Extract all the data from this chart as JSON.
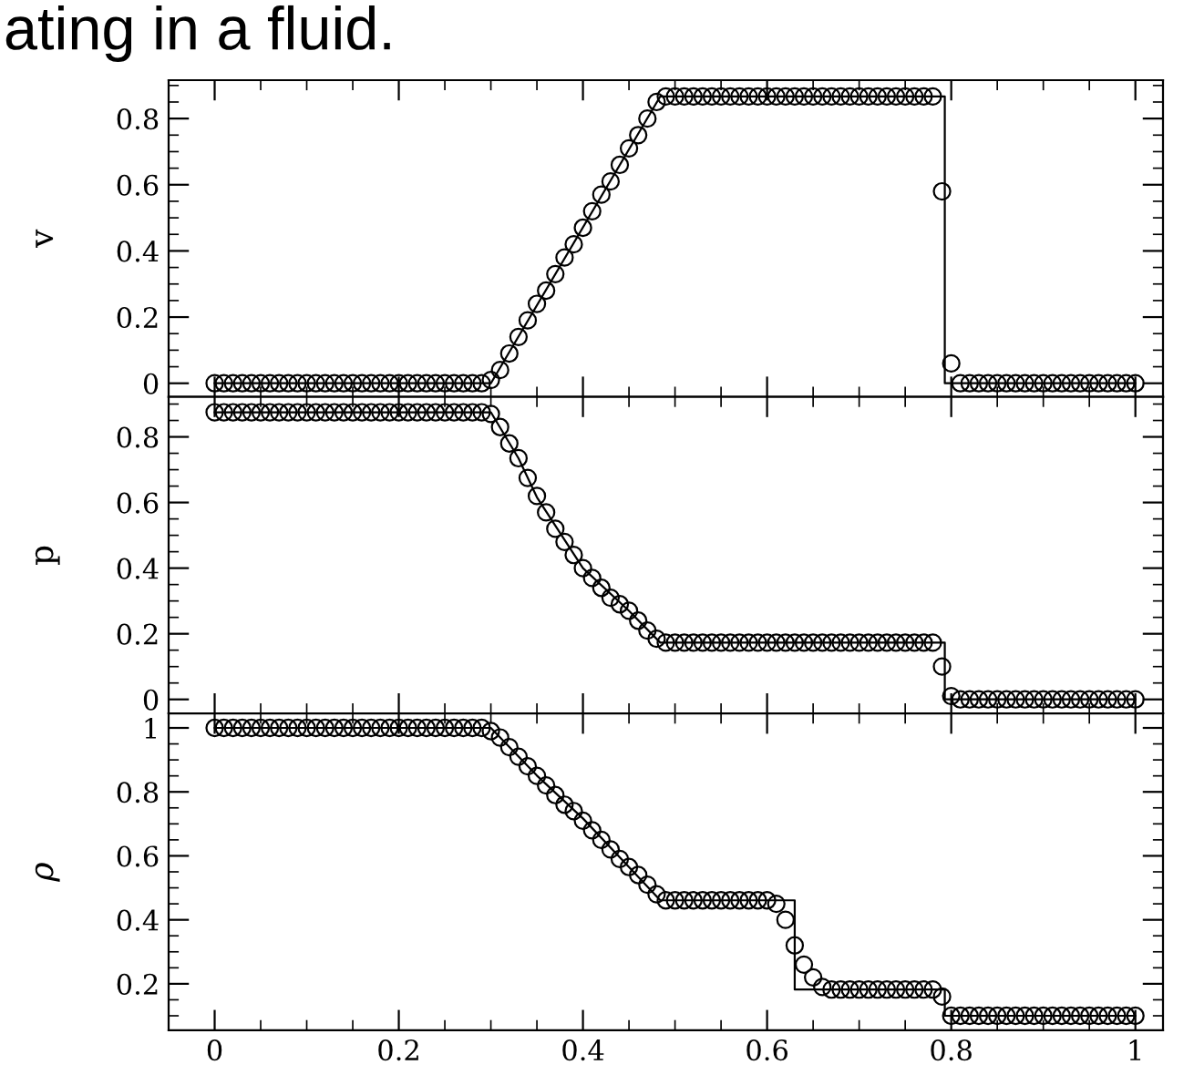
{
  "chart_data": [
    {
      "type": "scatter",
      "ylabel": "v",
      "annotations": [
        "ating in a fluid."
      ],
      "xlim": [
        -0.05,
        1.03
      ],
      "ylim": [
        -0.041,
        0.916
      ],
      "xticks": [
        0,
        0.2,
        0.4,
        0.6,
        0.8,
        1
      ],
      "yticks": [
        0,
        0.2,
        0.4,
        0.6,
        0.8
      ],
      "tick_labels": "y",
      "marker": "circle",
      "grid": false,
      "legend": false,
      "x": [
        0,
        0.01,
        0.02,
        0.03,
        0.04,
        0.05,
        0.06,
        0.07,
        0.08,
        0.09,
        0.1,
        0.11,
        0.12,
        0.13,
        0.14,
        0.15,
        0.16,
        0.17,
        0.18,
        0.19,
        0.2,
        0.21,
        0.22,
        0.23,
        0.24,
        0.25,
        0.26,
        0.27,
        0.28,
        0.29,
        0.3,
        0.31,
        0.32,
        0.33,
        0.34,
        0.35,
        0.36,
        0.37,
        0.38,
        0.39,
        0.4,
        0.41,
        0.42,
        0.43,
        0.44,
        0.45,
        0.46,
        0.47,
        0.48,
        0.49,
        0.5,
        0.51,
        0.52,
        0.53,
        0.54,
        0.55,
        0.56,
        0.57,
        0.58,
        0.59,
        0.6,
        0.61,
        0.62,
        0.63,
        0.64,
        0.65,
        0.66,
        0.67,
        0.68,
        0.69,
        0.7,
        0.71,
        0.72,
        0.73,
        0.74,
        0.75,
        0.76,
        0.77,
        0.78,
        0.79,
        0.8,
        0.81,
        0.82,
        0.83,
        0.84,
        0.85,
        0.86,
        0.87,
        0.88,
        0.89,
        0.9,
        0.91,
        0.92,
        0.93,
        0.94,
        0.95,
        0.96,
        0.97,
        0.98,
        0.99,
        1
      ],
      "series": [
        {
          "color": "#000000",
          "values": [
            0,
            0,
            0,
            0,
            0,
            0,
            0,
            0,
            0,
            0,
            0,
            0,
            0,
            0,
            0,
            0,
            0,
            0,
            0,
            0,
            0,
            0,
            0,
            0,
            0,
            0,
            0,
            0,
            0,
            0,
            0.01,
            0.04,
            0.09,
            0.14,
            0.19,
            0.24,
            0.28,
            0.33,
            0.38,
            0.42,
            0.47,
            0.52,
            0.57,
            0.61,
            0.66,
            0.71,
            0.75,
            0.8,
            0.85,
            0.867,
            0.867,
            0.867,
            0.867,
            0.867,
            0.867,
            0.867,
            0.867,
            0.867,
            0.867,
            0.867,
            0.867,
            0.867,
            0.867,
            0.867,
            0.867,
            0.867,
            0.867,
            0.867,
            0.867,
            0.867,
            0.867,
            0.867,
            0.867,
            0.867,
            0.867,
            0.867,
            0.867,
            0.867,
            0.867,
            0.58,
            0.06,
            0,
            0,
            0,
            0,
            0,
            0,
            0,
            0,
            0,
            0,
            0,
            0,
            0,
            0,
            0,
            0,
            0,
            0,
            0,
            0
          ]
        },
        {
          "type": "line",
          "color": "#000000",
          "line_style": "solid",
          "marker": "none",
          "x": [
            0,
            0.3,
            0.484,
            0.793,
            0.793,
            1
          ],
          "values": [
            0,
            0,
            0.867,
            0.867,
            0,
            0
          ]
        }
      ]
    },
    {
      "type": "scatter",
      "ylabel": "p",
      "xlim": [
        -0.05,
        1.03
      ],
      "ylim": [
        -0.043,
        0.922
      ],
      "xticks": [
        0,
        0.2,
        0.4,
        0.6,
        0.8,
        1
      ],
      "yticks": [
        0,
        0.2,
        0.4,
        0.6,
        0.8
      ],
      "tick_labels": "y",
      "marker": "circle",
      "grid": false,
      "legend": false,
      "x": [
        0,
        0.01,
        0.02,
        0.03,
        0.04,
        0.05,
        0.06,
        0.07,
        0.08,
        0.09,
        0.1,
        0.11,
        0.12,
        0.13,
        0.14,
        0.15,
        0.16,
        0.17,
        0.18,
        0.19,
        0.2,
        0.21,
        0.22,
        0.23,
        0.24,
        0.25,
        0.26,
        0.27,
        0.28,
        0.29,
        0.3,
        0.31,
        0.32,
        0.33,
        0.34,
        0.35,
        0.36,
        0.37,
        0.38,
        0.39,
        0.4,
        0.41,
        0.42,
        0.43,
        0.44,
        0.45,
        0.46,
        0.47,
        0.48,
        0.49,
        0.5,
        0.51,
        0.52,
        0.53,
        0.54,
        0.55,
        0.56,
        0.57,
        0.58,
        0.59,
        0.6,
        0.61,
        0.62,
        0.63,
        0.64,
        0.65,
        0.66,
        0.67,
        0.68,
        0.69,
        0.7,
        0.71,
        0.72,
        0.73,
        0.74,
        0.75,
        0.76,
        0.77,
        0.78,
        0.79,
        0.8,
        0.81,
        0.82,
        0.83,
        0.84,
        0.85,
        0.86,
        0.87,
        0.88,
        0.89,
        0.9,
        0.91,
        0.92,
        0.93,
        0.94,
        0.95,
        0.96,
        0.97,
        0.98,
        0.99,
        1
      ],
      "series": [
        {
          "color": "#000000",
          "values": [
            0.875,
            0.875,
            0.875,
            0.875,
            0.875,
            0.875,
            0.875,
            0.875,
            0.875,
            0.875,
            0.875,
            0.875,
            0.875,
            0.875,
            0.875,
            0.875,
            0.875,
            0.875,
            0.875,
            0.875,
            0.875,
            0.875,
            0.875,
            0.875,
            0.875,
            0.875,
            0.875,
            0.875,
            0.875,
            0.875,
            0.87,
            0.83,
            0.78,
            0.735,
            0.675,
            0.62,
            0.57,
            0.52,
            0.48,
            0.44,
            0.4,
            0.37,
            0.34,
            0.31,
            0.29,
            0.27,
            0.24,
            0.21,
            0.185,
            0.173,
            0.173,
            0.173,
            0.173,
            0.173,
            0.173,
            0.173,
            0.173,
            0.173,
            0.173,
            0.173,
            0.173,
            0.173,
            0.173,
            0.173,
            0.173,
            0.173,
            0.173,
            0.173,
            0.173,
            0.173,
            0.173,
            0.173,
            0.173,
            0.173,
            0.173,
            0.173,
            0.173,
            0.173,
            0.173,
            0.1,
            0.01,
            0,
            0,
            0,
            0,
            0,
            0,
            0,
            0,
            0,
            0,
            0,
            0,
            0,
            0,
            0,
            0,
            0,
            0,
            0,
            0
          ]
        },
        {
          "type": "line",
          "color": "#000000",
          "line_style": "solid",
          "marker": "none",
          "x": [
            0,
            0.3,
            0.33,
            0.35,
            0.4,
            0.45,
            0.484,
            0.793,
            0.793,
            1
          ],
          "values": [
            0.875,
            0.875,
            0.735,
            0.616,
            0.4,
            0.27,
            0.173,
            0.173,
            0,
            0
          ]
        }
      ]
    },
    {
      "type": "scatter",
      "ylabel": "ρ",
      "xlim": [
        -0.05,
        1.03
      ],
      "ylim": [
        0.055,
        1.045
      ],
      "xticks": [
        0,
        0.2,
        0.4,
        0.6,
        0.8,
        1
      ],
      "yticks": [
        0.2,
        0.4,
        0.6,
        0.8,
        1
      ],
      "marker": "circle",
      "grid": false,
      "legend": false,
      "x": [
        0,
        0.01,
        0.02,
        0.03,
        0.04,
        0.05,
        0.06,
        0.07,
        0.08,
        0.09,
        0.1,
        0.11,
        0.12,
        0.13,
        0.14,
        0.15,
        0.16,
        0.17,
        0.18,
        0.19,
        0.2,
        0.21,
        0.22,
        0.23,
        0.24,
        0.25,
        0.26,
        0.27,
        0.28,
        0.29,
        0.3,
        0.31,
        0.32,
        0.33,
        0.34,
        0.35,
        0.36,
        0.37,
        0.38,
        0.39,
        0.4,
        0.41,
        0.42,
        0.43,
        0.44,
        0.45,
        0.46,
        0.47,
        0.48,
        0.49,
        0.5,
        0.51,
        0.52,
        0.53,
        0.54,
        0.55,
        0.56,
        0.57,
        0.58,
        0.59,
        0.6,
        0.61,
        0.62,
        0.63,
        0.64,
        0.65,
        0.66,
        0.67,
        0.68,
        0.69,
        0.7,
        0.71,
        0.72,
        0.73,
        0.74,
        0.75,
        0.76,
        0.77,
        0.78,
        0.79,
        0.8,
        0.81,
        0.82,
        0.83,
        0.84,
        0.85,
        0.86,
        0.87,
        0.88,
        0.89,
        0.9,
        0.91,
        0.92,
        0.93,
        0.94,
        0.95,
        0.96,
        0.97,
        0.98,
        0.99,
        1
      ],
      "series": [
        {
          "color": "#000000",
          "values": [
            1,
            1,
            1,
            1,
            1,
            1,
            1,
            1,
            1,
            1,
            1,
            1,
            1,
            1,
            1,
            1,
            1,
            1,
            1,
            1,
            1,
            1,
            1,
            1,
            1,
            1,
            1,
            1,
            1,
            1,
            0.99,
            0.97,
            0.94,
            0.91,
            0.88,
            0.85,
            0.82,
            0.79,
            0.76,
            0.74,
            0.71,
            0.68,
            0.65,
            0.62,
            0.59,
            0.565,
            0.54,
            0.51,
            0.48,
            0.461,
            0.461,
            0.461,
            0.461,
            0.461,
            0.461,
            0.461,
            0.461,
            0.461,
            0.461,
            0.461,
            0.461,
            0.45,
            0.4,
            0.32,
            0.26,
            0.22,
            0.19,
            0.182,
            0.182,
            0.182,
            0.182,
            0.182,
            0.182,
            0.182,
            0.182,
            0.182,
            0.182,
            0.182,
            0.182,
            0.16,
            0.1,
            0.1,
            0.1,
            0.1,
            0.1,
            0.1,
            0.1,
            0.1,
            0.1,
            0.1,
            0.1,
            0.1,
            0.1,
            0.1,
            0.1,
            0.1,
            0.1,
            0.1,
            0.1,
            0.1,
            0.1
          ]
        },
        {
          "type": "line",
          "color": "#000000",
          "line_style": "solid",
          "marker": "none",
          "x": [
            0,
            0.3,
            0.35,
            0.4,
            0.45,
            0.484,
            0.63,
            0.63,
            0.793,
            0.793,
            1
          ],
          "values": [
            1,
            1,
            0.851,
            0.717,
            0.565,
            0.461,
            0.461,
            0.182,
            0.182,
            0.1,
            0.1
          ]
        }
      ]
    }
  ]
}
